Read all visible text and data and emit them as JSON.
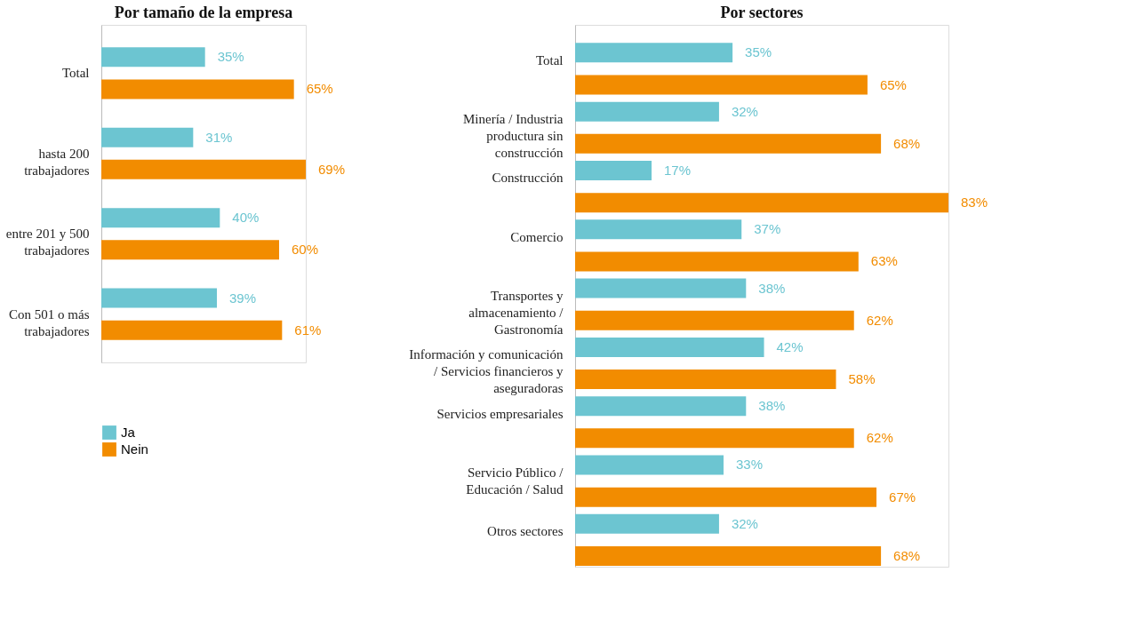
{
  "chart_data": [
    {
      "type": "bar",
      "title": "Por tamaño de la empresa",
      "orientation": "horizontal",
      "categories": [
        "Total",
        "hasta 200 trabajadores",
        "entre 201 y 500 trabajadores",
        "Con 501 o más trabajadores"
      ],
      "series": [
        {
          "name": "Ja",
          "color": "#6cc5d1",
          "values": [
            35,
            31,
            40,
            39
          ],
          "value_labels": [
            "35%",
            "31%",
            "40%",
            "39%"
          ]
        },
        {
          "name": "Nein",
          "color": "#f28c00",
          "values": [
            65,
            69,
            60,
            61
          ],
          "value_labels": [
            "65%",
            "69%",
            "60%",
            "61%"
          ]
        }
      ],
      "legend": "bottom left"
    },
    {
      "type": "bar",
      "title": "Por sectores",
      "orientation": "horizontal",
      "categories": [
        "Total",
        "Minería / Industria productura sin construcción",
        "Construcción",
        "Comercio",
        "Transportes y almacenamiento / Gastronomía",
        "Información y comunicación / Servicios financieros y aseguradoras",
        "Servicios empresariales",
        "Servicio Público / Educación / Salud",
        "Otros sectores"
      ],
      "series": [
        {
          "color": "#6cc5d1",
          "values": [
            35,
            32,
            17,
            37,
            38,
            42,
            38,
            33,
            32
          ],
          "value_labels": [
            "35%",
            "32%",
            "17%",
            "37%",
            "38%",
            "42%",
            "38%",
            "33%",
            "32%"
          ]
        },
        {
          "color": "#f28c00",
          "values": [
            65,
            68,
            83,
            63,
            62,
            58,
            62,
            67,
            68
          ],
          "value_labels": [
            "65%",
            "68%",
            "83%",
            "63%",
            "62%",
            "58%",
            "62%",
            "67%",
            "68%"
          ]
        }
      ]
    }
  ]
}
